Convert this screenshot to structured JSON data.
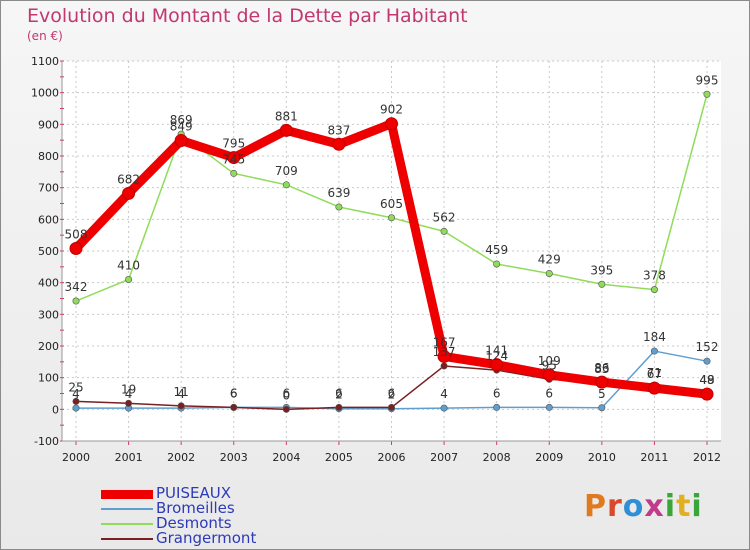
{
  "title": "Evolution du Montant de la Dette par Habitant",
  "subtitle": "(en €)",
  "logo": {
    "text": "Proxiti",
    "letter_colors": [
      "#e07a1f",
      "#d94a2b",
      "#2f8fd6",
      "#c23a8a",
      "#3aa63a",
      "#e0b020",
      "#3aa63a"
    ]
  },
  "chart_data": {
    "type": "line",
    "title": "Evolution du Montant de la Dette par Habitant",
    "ylabel": "(en €)",
    "xlabel": "",
    "x": [
      "2000",
      "2001",
      "2002",
      "2003",
      "2004",
      "2005",
      "2006",
      "2007",
      "2008",
      "2009",
      "2010",
      "2011",
      "2012"
    ],
    "ylim": [
      -100,
      1100
    ],
    "yticks": [
      -100,
      0,
      100,
      200,
      300,
      400,
      500,
      600,
      700,
      800,
      900,
      1000,
      1100
    ],
    "grid": true,
    "legend_position": "bottom-left",
    "series": [
      {
        "name": "PUISEAUX",
        "color": "#ee0000",
        "highlight": true,
        "values": [
          508,
          682,
          849,
          795,
          881,
          837,
          902,
          167,
          141,
          109,
          86,
          67,
          48
        ]
      },
      {
        "name": "Bromeilles",
        "color": "#5f9fd0",
        "values": [
          4,
          4,
          4,
          6,
          6,
          2,
          2,
          4,
          6,
          6,
          5,
          184,
          152
        ]
      },
      {
        "name": "Desmonts",
        "color": "#8fdc5a",
        "values": [
          342,
          410,
          869,
          745,
          709,
          639,
          605,
          562,
          459,
          429,
          395,
          378,
          995
        ]
      },
      {
        "name": "Grangermont",
        "color": "#7a1f22",
        "values": [
          25,
          19,
          11,
          6,
          0,
          6,
          6,
          137,
          124,
          95,
          83,
          71,
          49
        ]
      }
    ]
  }
}
